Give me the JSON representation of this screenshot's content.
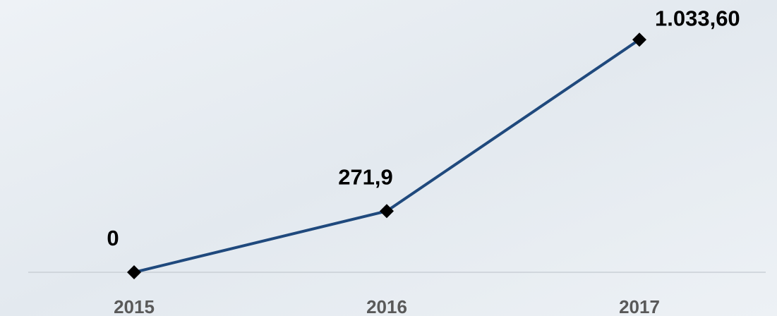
{
  "chart_data": {
    "type": "line",
    "categories": [
      "2015",
      "2016",
      "2017"
    ],
    "series": [
      {
        "color": "#1f497d",
        "values": [
          0,
          271.9,
          1033.6
        ],
        "value_labels": [
          "0",
          "271,9",
          "1.033,60"
        ]
      }
    ],
    "ylim": [
      0,
      1100
    ]
  }
}
